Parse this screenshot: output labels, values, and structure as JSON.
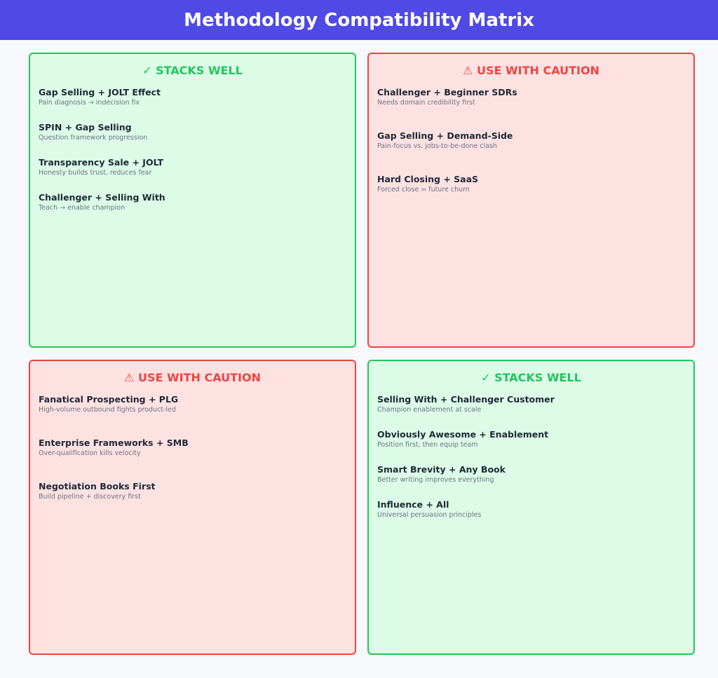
{
  "header": {
    "title": "Methodology Compatibility Matrix",
    "color": "#4f49e6"
  },
  "quadrants": [
    {
      "heading": "✓ STACKS WELL",
      "color": "#22c55e",
      "background": "#dcfce7",
      "items": [
        {
          "title": "Gap Selling + JOLT Effect",
          "description": "Pain diagnosis → indecision fix"
        },
        {
          "title": "SPIN + Gap Selling",
          "description": "Question framework progression"
        },
        {
          "title": "Transparency Sale + JOLT",
          "description": "Honesty builds trust, reduces fear"
        },
        {
          "title": "Challenger + Selling With",
          "description": "Teach → enable champion"
        }
      ]
    },
    {
      "heading": "⚠ USE WITH CAUTION",
      "color": "#ef4444",
      "background": "#fee2e2",
      "items": [
        {
          "title": "Challenger + Beginner SDRs",
          "description": "Needs domain credibility first"
        },
        {
          "title": "Gap Selling + Demand-Side",
          "description": "Pain-focus vs. jobs-to-be-done clash"
        },
        {
          "title": "Hard Closing + SaaS",
          "description": "Forced close = future churn"
        }
      ]
    },
    {
      "heading": "⚠ USE WITH CAUTION",
      "color": "#ef4444",
      "background": "#fee2e2",
      "items": [
        {
          "title": "Fanatical Prospecting + PLG",
          "description": "High-volume outbound fights product-led"
        },
        {
          "title": "Enterprise Frameworks + SMB",
          "description": "Over-qualification kills velocity"
        },
        {
          "title": "Negotiation Books First",
          "description": "Build pipeline + discovery first"
        }
      ]
    },
    {
      "heading": "✓ STACKS WELL",
      "color": "#22c55e",
      "background": "#dcfce7",
      "items": [
        {
          "title": "Selling With + Challenger Customer",
          "description": "Champion enablement at scale"
        },
        {
          "title": "Obviously Awesome + Enablement",
          "description": "Position first, then equip team"
        },
        {
          "title": "Smart Brevity + Any Book",
          "description": "Better writing improves everything"
        },
        {
          "title": "Influence + All",
          "description": "Universal persuasion principles"
        }
      ]
    }
  ]
}
